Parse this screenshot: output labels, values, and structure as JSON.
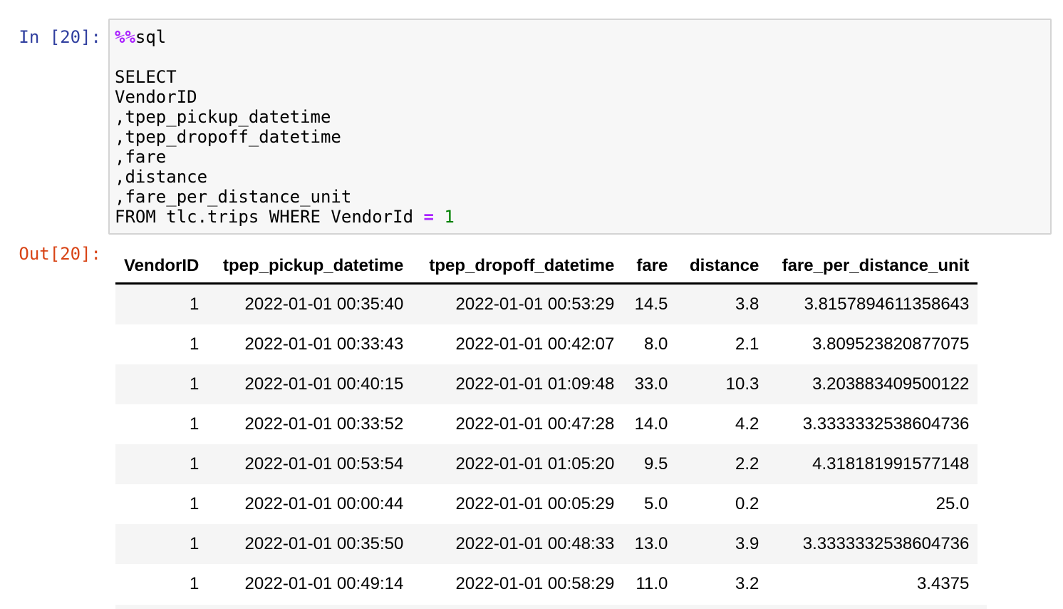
{
  "cell": {
    "in_prompt": "In [20]:",
    "out_prompt": "Out[20]:",
    "code": {
      "magic": "%%",
      "magic_cmd": "sql",
      "lines": [
        "SELECT",
        "VendorID",
        ",tpep_pickup_datetime",
        ",tpep_dropoff_datetime",
        ",fare",
        ",distance",
        ",fare_per_distance_unit"
      ],
      "last_line_prefix": "FROM tlc.trips WHERE VendorId ",
      "last_line_op": "=",
      "last_line_num": "1"
    }
  },
  "table": {
    "columns": [
      "VendorID",
      "tpep_pickup_datetime",
      "tpep_dropoff_datetime",
      "fare",
      "distance",
      "fare_per_distance_unit"
    ],
    "rows": [
      [
        "1",
        "2022-01-01 00:35:40",
        "2022-01-01 00:53:29",
        "14.5",
        "3.8",
        "3.8157894611358643"
      ],
      [
        "1",
        "2022-01-01 00:33:43",
        "2022-01-01 00:42:07",
        "8.0",
        "2.1",
        "3.809523820877075"
      ],
      [
        "1",
        "2022-01-01 00:40:15",
        "2022-01-01 01:09:48",
        "33.0",
        "10.3",
        "3.203883409500122"
      ],
      [
        "1",
        "2022-01-01 00:33:52",
        "2022-01-01 00:47:28",
        "14.0",
        "4.2",
        "3.3333332538604736"
      ],
      [
        "1",
        "2022-01-01 00:53:54",
        "2022-01-01 01:05:20",
        "9.5",
        "2.2",
        "4.318181991577148"
      ],
      [
        "1",
        "2022-01-01 00:00:44",
        "2022-01-01 00:05:29",
        "5.0",
        "0.2",
        "25.0"
      ],
      [
        "1",
        "2022-01-01 00:35:50",
        "2022-01-01 00:48:33",
        "13.0",
        "3.9",
        "3.3333332538604736"
      ],
      [
        "1",
        "2022-01-01 00:49:14",
        "2022-01-01 00:58:29",
        "11.0",
        "3.2",
        "3.4375"
      ]
    ]
  }
}
